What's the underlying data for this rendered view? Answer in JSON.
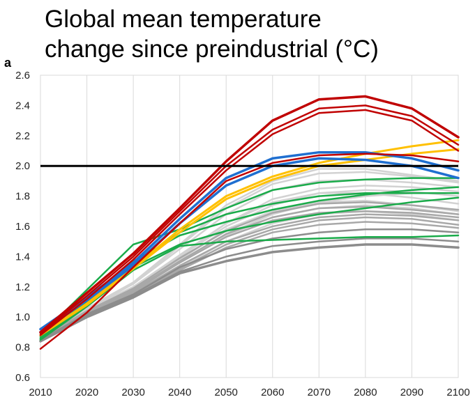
{
  "title_lines": [
    "Global mean temperature",
    "change since preindustrial (°C)"
  ],
  "panel_label": "a",
  "chart_data": {
    "type": "line",
    "title": "Global mean temperature change since preindustrial (°C)",
    "xlabel": "",
    "ylabel": "",
    "x": [
      2010,
      2020,
      2030,
      2040,
      2050,
      2060,
      2070,
      2080,
      2090,
      2100
    ],
    "xlim": [
      2010,
      2100
    ],
    "ylim": [
      0.6,
      2.6
    ],
    "x_ticks": [
      "2010",
      "2020",
      "2030",
      "2040",
      "2050",
      "2060",
      "2070",
      "2080",
      "2090",
      "2100"
    ],
    "y_ticks": [
      "0.6",
      "0.8",
      "1.0",
      "1.2",
      "1.4",
      "1.6",
      "1.8",
      "2.0",
      "2.2",
      "2.4",
      "2.6"
    ],
    "grid": "vertical",
    "reference_line": {
      "y": 2.0,
      "color": "#000000"
    },
    "colors": {
      "red": "#c00000",
      "yellow": "#ffc000",
      "blue": "#1f6fd0",
      "green": "#1aab4a",
      "dark_gray": "#8c8c8c",
      "mid_gray": "#a8a8a8",
      "light_gray": "#d2d2d2"
    },
    "series": [
      {
        "color": "light_gray",
        "width": 2.5,
        "values": [
          0.86,
          1.04,
          1.18,
          1.36,
          1.55,
          1.68,
          1.76,
          1.8,
          1.82,
          1.82
        ]
      },
      {
        "color": "light_gray",
        "width": 2.5,
        "values": [
          0.87,
          1.05,
          1.2,
          1.4,
          1.6,
          1.74,
          1.82,
          1.84,
          1.83,
          1.8
        ]
      },
      {
        "color": "light_gray",
        "width": 2.5,
        "values": [
          0.86,
          1.04,
          1.19,
          1.4,
          1.62,
          1.78,
          1.85,
          1.87,
          1.86,
          1.83
        ]
      },
      {
        "color": "light_gray",
        "width": 2.5,
        "values": [
          0.88,
          1.06,
          1.22,
          1.45,
          1.68,
          1.84,
          1.9,
          1.91,
          1.89,
          1.86
        ]
      },
      {
        "color": "light_gray",
        "width": 2.5,
        "values": [
          0.87,
          1.05,
          1.22,
          1.47,
          1.72,
          1.88,
          1.95,
          1.96,
          1.93,
          1.89
        ]
      },
      {
        "color": "light_gray",
        "width": 2.5,
        "values": [
          0.86,
          1.03,
          1.17,
          1.36,
          1.54,
          1.66,
          1.72,
          1.74,
          1.72,
          1.68
        ]
      },
      {
        "color": "light_gray",
        "width": 2.5,
        "values": [
          0.85,
          1.02,
          1.16,
          1.33,
          1.5,
          1.62,
          1.68,
          1.7,
          1.68,
          1.64
        ]
      },
      {
        "color": "light_gray",
        "width": 2.5,
        "values": [
          0.87,
          1.06,
          1.23,
          1.48,
          1.74,
          1.9,
          1.98,
          1.98,
          1.94,
          1.9
        ]
      },
      {
        "color": "light_gray",
        "width": 2.5,
        "values": [
          0.86,
          1.04,
          1.2,
          1.41,
          1.62,
          1.76,
          1.82,
          1.82,
          1.79,
          1.75
        ]
      },
      {
        "color": "light_gray",
        "width": 2.5,
        "values": [
          0.85,
          1.03,
          1.18,
          1.38,
          1.58,
          1.7,
          1.76,
          1.77,
          1.74,
          1.7
        ]
      },
      {
        "color": "mid_gray",
        "width": 2.5,
        "values": [
          0.85,
          1.02,
          1.15,
          1.32,
          1.48,
          1.58,
          1.64,
          1.66,
          1.65,
          1.61
        ]
      },
      {
        "color": "mid_gray",
        "width": 2.5,
        "values": [
          0.86,
          1.03,
          1.17,
          1.36,
          1.53,
          1.64,
          1.69,
          1.7,
          1.69,
          1.66
        ]
      },
      {
        "color": "mid_gray",
        "width": 2.5,
        "values": [
          0.84,
          1.01,
          1.14,
          1.31,
          1.46,
          1.56,
          1.61,
          1.63,
          1.62,
          1.59
        ]
      },
      {
        "color": "mid_gray",
        "width": 2.5,
        "values": [
          0.86,
          1.04,
          1.19,
          1.39,
          1.57,
          1.69,
          1.75,
          1.76,
          1.74,
          1.71
        ]
      },
      {
        "color": "mid_gray",
        "width": 2.5,
        "values": [
          0.85,
          1.02,
          1.16,
          1.34,
          1.5,
          1.6,
          1.66,
          1.68,
          1.67,
          1.64
        ]
      },
      {
        "color": "mid_gray",
        "width": 2.5,
        "values": [
          0.86,
          1.03,
          1.18,
          1.37,
          1.55,
          1.66,
          1.72,
          1.73,
          1.71,
          1.68
        ]
      },
      {
        "color": "dark_gray",
        "width": 3.5,
        "values": [
          0.84,
          1.0,
          1.13,
          1.29,
          1.37,
          1.43,
          1.46,
          1.48,
          1.48,
          1.46
        ]
      },
      {
        "color": "dark_gray",
        "width": 2.5,
        "values": [
          0.85,
          1.01,
          1.14,
          1.3,
          1.4,
          1.47,
          1.5,
          1.52,
          1.52,
          1.5
        ]
      },
      {
        "color": "dark_gray",
        "width": 2.5,
        "values": [
          0.85,
          1.02,
          1.15,
          1.33,
          1.45,
          1.52,
          1.56,
          1.58,
          1.58,
          1.56
        ]
      },
      {
        "color": "green",
        "width": 2.5,
        "values": [
          0.88,
          1.18,
          1.48,
          1.58,
          1.72,
          1.84,
          1.89,
          1.91,
          1.92,
          1.92
        ]
      },
      {
        "color": "green",
        "width": 2.5,
        "values": [
          0.87,
          1.1,
          1.37,
          1.54,
          1.63,
          1.71,
          1.77,
          1.81,
          1.84,
          1.86
        ]
      },
      {
        "color": "green",
        "width": 2.5,
        "values": [
          0.86,
          1.08,
          1.33,
          1.48,
          1.57,
          1.63,
          1.68,
          1.72,
          1.76,
          1.79
        ]
      },
      {
        "color": "green",
        "width": 2.5,
        "values": [
          0.85,
          1.07,
          1.31,
          1.47,
          1.5,
          1.51,
          1.52,
          1.53,
          1.53,
          1.54
        ]
      },
      {
        "color": "green",
        "width": 2.5,
        "values": [
          0.86,
          1.09,
          1.35,
          1.56,
          1.68,
          1.75,
          1.8,
          1.82,
          1.82,
          1.82
        ]
      },
      {
        "color": "yellow",
        "width": 3,
        "values": [
          0.88,
          1.09,
          1.33,
          1.58,
          1.8,
          1.93,
          2.02,
          2.08,
          2.13,
          2.17
        ]
      },
      {
        "color": "yellow",
        "width": 3,
        "values": [
          0.88,
          1.08,
          1.32,
          1.56,
          1.78,
          1.91,
          2.0,
          2.04,
          2.08,
          2.11
        ]
      },
      {
        "color": "blue",
        "width": 3.5,
        "values": [
          0.92,
          1.13,
          1.36,
          1.65,
          1.92,
          2.05,
          2.09,
          2.09,
          2.05,
          1.97
        ]
      },
      {
        "color": "blue",
        "width": 3.5,
        "values": [
          0.9,
          1.11,
          1.34,
          1.62,
          1.87,
          2.0,
          2.05,
          2.04,
          2.0,
          1.92
        ]
      },
      {
        "color": "red",
        "width": 3.5,
        "values": [
          0.9,
          1.16,
          1.42,
          1.72,
          2.03,
          2.3,
          2.44,
          2.46,
          2.38,
          2.19
        ]
      },
      {
        "color": "red",
        "width": 2.5,
        "values": [
          0.89,
          1.14,
          1.4,
          1.7,
          2.0,
          2.24,
          2.38,
          2.4,
          2.33,
          2.14
        ]
      },
      {
        "color": "red",
        "width": 2.5,
        "values": [
          0.88,
          1.12,
          1.38,
          1.68,
          1.97,
          2.21,
          2.35,
          2.37,
          2.3,
          2.1
        ]
      },
      {
        "color": "red",
        "width": 2.5,
        "values": [
          0.79,
          1.03,
          1.33,
          1.62,
          1.9,
          2.02,
          2.07,
          2.08,
          2.07,
          2.03
        ]
      }
    ]
  }
}
